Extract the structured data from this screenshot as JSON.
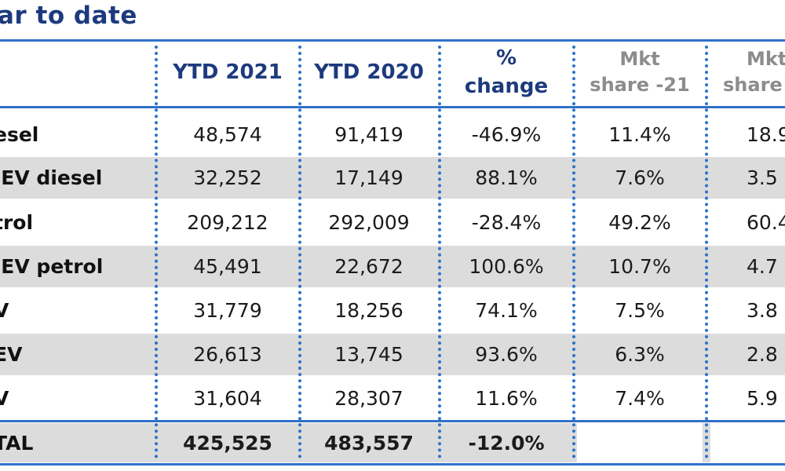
{
  "title": "ar to date",
  "headers": {
    "ytd2021": "YTD 2021",
    "ytd2020": "YTD 2020",
    "pct_line1": "%",
    "pct_line2": "change",
    "mkt21_line1": "Mkt",
    "mkt21_line2": "share -21",
    "mkt20_line1": "Mkt",
    "mkt20_line2": "share -"
  },
  "rows": [
    {
      "label": "esel",
      "ytd2021": "48,574",
      "ytd2020": "91,419",
      "pct": "-46.9%",
      "mkt21": "11.4%",
      "mkt20": "18.9"
    },
    {
      "label": "IEV diesel",
      "ytd2021": "32,252",
      "ytd2020": "17,149",
      "pct": "88.1%",
      "mkt21": "7.6%",
      "mkt20": "3.5"
    },
    {
      "label": "trol",
      "ytd2021": "209,212",
      "ytd2020": "292,009",
      "pct": "-28.4%",
      "mkt21": "49.2%",
      "mkt20": "60.4"
    },
    {
      "label": "IEV petrol",
      "ytd2021": "45,491",
      "ytd2020": "22,672",
      "pct": "100.6%",
      "mkt21": "10.7%",
      "mkt20": "4.7"
    },
    {
      "label": "V",
      "ytd2021": "31,779",
      "ytd2020": "18,256",
      "pct": "74.1%",
      "mkt21": "7.5%",
      "mkt20": "3.8"
    },
    {
      "label": "EV",
      "ytd2021": "26,613",
      "ytd2020": "13,745",
      "pct": "93.6%",
      "mkt21": "6.3%",
      "mkt20": "2.8"
    },
    {
      "label": "V",
      "ytd2021": "31,604",
      "ytd2020": "28,307",
      "pct": "11.6%",
      "mkt21": "7.4%",
      "mkt20": "5.9"
    }
  ],
  "total": {
    "label": "TAL",
    "ytd2021": "425,525",
    "ytd2020": "483,557",
    "pct": "-12.0%",
    "mkt21": "",
    "mkt20": ""
  },
  "colors": {
    "accent": "#1d3a7e",
    "rule": "#2f72c8",
    "shade": "#dcdcdc",
    "muted": "#8c8c8c"
  }
}
